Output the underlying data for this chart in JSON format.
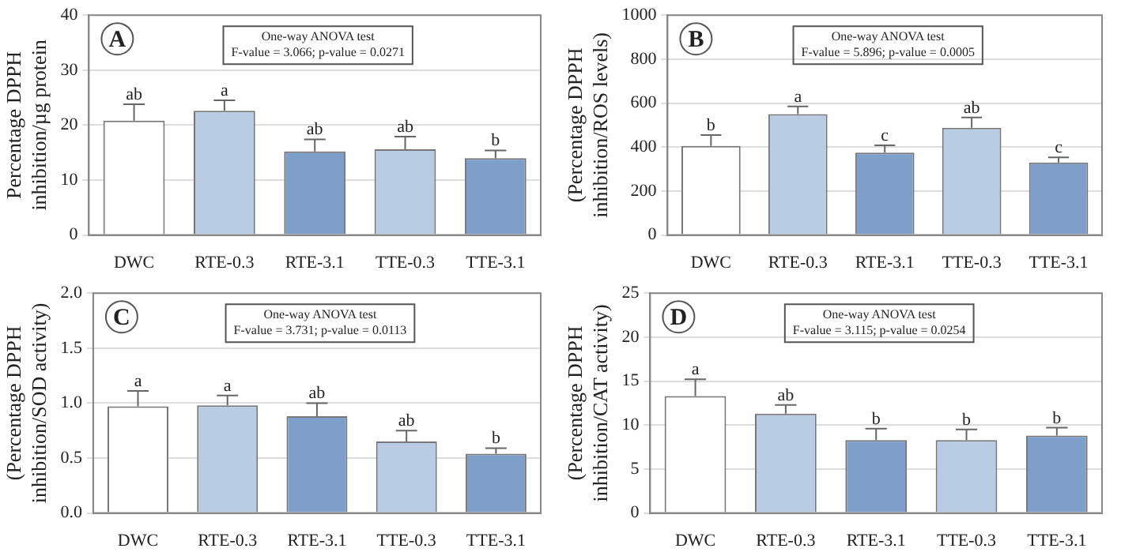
{
  "chart_data": [
    {
      "type": "bar",
      "ylabel": "Percentage DPPH\ninhibition/µg protein",
      "categories": [
        "DWC",
        "RTE-0.3",
        "RTE-3.1",
        "TTE-0.3",
        "TTE-3.1"
      ],
      "values": [
        20.8,
        22.6,
        15.2,
        15.6,
        14.0
      ],
      "colors": [
        "#ffffff",
        "#b8cce4",
        "#7f9fcb",
        "#b8cce4",
        "#7f9fcb"
      ],
      "errors": [
        [
          20.8,
          23.8
        ],
        [
          22.6,
          24.5
        ],
        [
          15.2,
          17.4
        ],
        [
          15.6,
          17.9
        ],
        [
          14.0,
          15.4
        ]
      ],
      "ylim": [
        0,
        40
      ],
      "yticks": [
        0,
        10,
        20,
        30,
        40
      ],
      "grid": "y",
      "annotations": [
        "A",
        "One-way ANOVA test",
        "F-value = 3.066; p-value = 0.0271",
        {
          "text": "ab",
          "x": "DWC",
          "y": 23.8
        },
        {
          "text": "a",
          "x": "RTE-0.3",
          "y": 24.5
        },
        {
          "text": "ab",
          "x": "RTE-3.1",
          "y": 17.4
        },
        {
          "text": "ab",
          "x": "TTE-0.3",
          "y": 17.9
        },
        {
          "text": "b",
          "x": "TTE-3.1",
          "y": 15.4
        }
      ]
    },
    {
      "type": "bar",
      "ylabel": "(Percentage DPPH\ninhibition/ROS levels)",
      "categories": [
        "DWC",
        "RTE-0.3",
        "RTE-3.1",
        "TTE-0.3",
        "TTE-3.1"
      ],
      "values": [
        405,
        550,
        375,
        488,
        330
      ],
      "colors": [
        "#ffffff",
        "#b8cce4",
        "#7f9fcb",
        "#b8cce4",
        "#7f9fcb"
      ],
      "errors": [
        [
          405,
          455
        ],
        [
          550,
          585
        ],
        [
          375,
          408
        ],
        [
          488,
          535
        ],
        [
          330,
          353
        ]
      ],
      "ylim": [
        0,
        1000
      ],
      "yticks": [
        0,
        200,
        400,
        600,
        800,
        1000
      ],
      "grid": "y",
      "annotations": [
        "B",
        "One-way ANOVA test",
        "F-value = 5.896; p-value = 0.0005",
        {
          "text": "b",
          "x": "DWC",
          "y": 455
        },
        {
          "text": "a",
          "x": "RTE-0.3",
          "y": 585
        },
        {
          "text": "c",
          "x": "RTE-3.1",
          "y": 408
        },
        {
          "text": "ab",
          "x": "TTE-0.3",
          "y": 535
        },
        {
          "text": "c",
          "x": "TTE-3.1",
          "y": 353
        }
      ]
    },
    {
      "type": "bar",
      "ylabel": "(Percentage DPPH\ninhibition/SOD activity)",
      "categories": [
        "DWC",
        "RTE-0.3",
        "RTE-3.1",
        "TTE-0.3",
        "TTE-3.1"
      ],
      "values": [
        0.97,
        0.98,
        0.88,
        0.65,
        0.54
      ],
      "colors": [
        "#ffffff",
        "#b8cce4",
        "#7f9fcb",
        "#b8cce4",
        "#7f9fcb"
      ],
      "errors": [
        [
          0.97,
          1.11
        ],
        [
          0.98,
          1.07
        ],
        [
          0.88,
          1.0
        ],
        [
          0.65,
          0.75
        ],
        [
          0.54,
          0.59
        ]
      ],
      "ylim": [
        0,
        2
      ],
      "yticks": [
        {
          "value": 0,
          "label": "0.0"
        },
        {
          "value": 0.5,
          "label": "0.5"
        },
        {
          "value": 1,
          "label": "1.0"
        },
        {
          "value": 1.5,
          "label": "1.5"
        },
        {
          "value": 2,
          "label": "2.0"
        }
      ],
      "grid": "y",
      "annotations": [
        "C",
        "One-way ANOVA test",
        "F-value = 3.731; p-value = 0.0113",
        {
          "text": "a",
          "x": "DWC",
          "y": 1.11
        },
        {
          "text": "a",
          "x": "RTE-0.3",
          "y": 1.07
        },
        {
          "text": "ab",
          "x": "RTE-3.1",
          "y": 1.0
        },
        {
          "text": "ab",
          "x": "TTE-0.3",
          "y": 0.75
        },
        {
          "text": "b",
          "x": "TTE-3.1",
          "y": 0.59
        }
      ]
    },
    {
      "type": "bar",
      "ylabel": "(Percentage DPPH\ninhibition/CAT activity)",
      "categories": [
        "DWC",
        "RTE-0.3",
        "RTE-3.1",
        "TTE-0.3",
        "TTE-3.1"
      ],
      "values": [
        13.3,
        11.3,
        8.3,
        8.3,
        8.8
      ],
      "colors": [
        "#ffffff",
        "#b8cce4",
        "#7f9fcb",
        "#b8cce4",
        "#7f9fcb"
      ],
      "errors": [
        [
          13.3,
          15.2
        ],
        [
          11.3,
          12.3
        ],
        [
          8.3,
          9.6
        ],
        [
          8.3,
          9.5
        ],
        [
          8.8,
          9.7
        ]
      ],
      "ylim": [
        0,
        25
      ],
      "yticks": [
        0,
        5,
        10,
        15,
        20,
        25
      ],
      "grid": "y",
      "annotations": [
        "D",
        "One-way ANOVA test",
        "F-value = 3.115; p-value = 0.0254",
        {
          "text": "a",
          "x": "DWC",
          "y": 15.2
        },
        {
          "text": "ab",
          "x": "RTE-0.3",
          "y": 12.3
        },
        {
          "text": "b",
          "x": "RTE-3.1",
          "y": 9.6
        },
        {
          "text": "b",
          "x": "TTE-0.3",
          "y": 9.5
        },
        {
          "text": "b",
          "x": "TTE-3.1",
          "y": 9.7
        }
      ]
    }
  ]
}
